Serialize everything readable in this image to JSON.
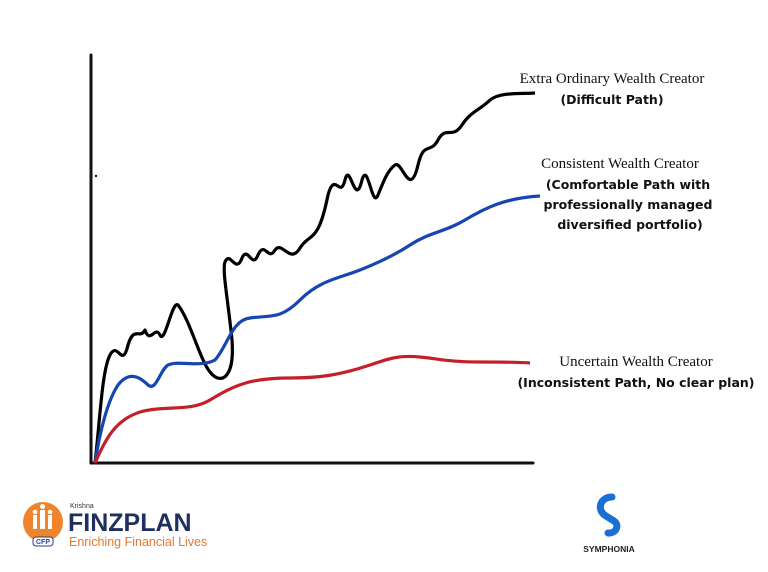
{
  "paths": [
    {
      "title": "Extra Ordinary Wealth Creator",
      "notes": [
        "(Difficult Path)"
      ]
    },
    {
      "title": "Consistent Wealth Creator",
      "notes": [
        "(Comfortable Path with",
        "professionally managed",
        "diversified portfolio)"
      ]
    },
    {
      "title": "Uncertain Wealth Creator",
      "notes": [
        "(Inconsistent Path, No clear plan)"
      ]
    }
  ],
  "logos": {
    "finzplan": {
      "owner": "Krishna",
      "name": "FINZPLAN",
      "tagline": "Enriching Financial Lives",
      "badge": "CFP"
    },
    "symphonia": {
      "name": "SYMPHONIA"
    }
  }
}
